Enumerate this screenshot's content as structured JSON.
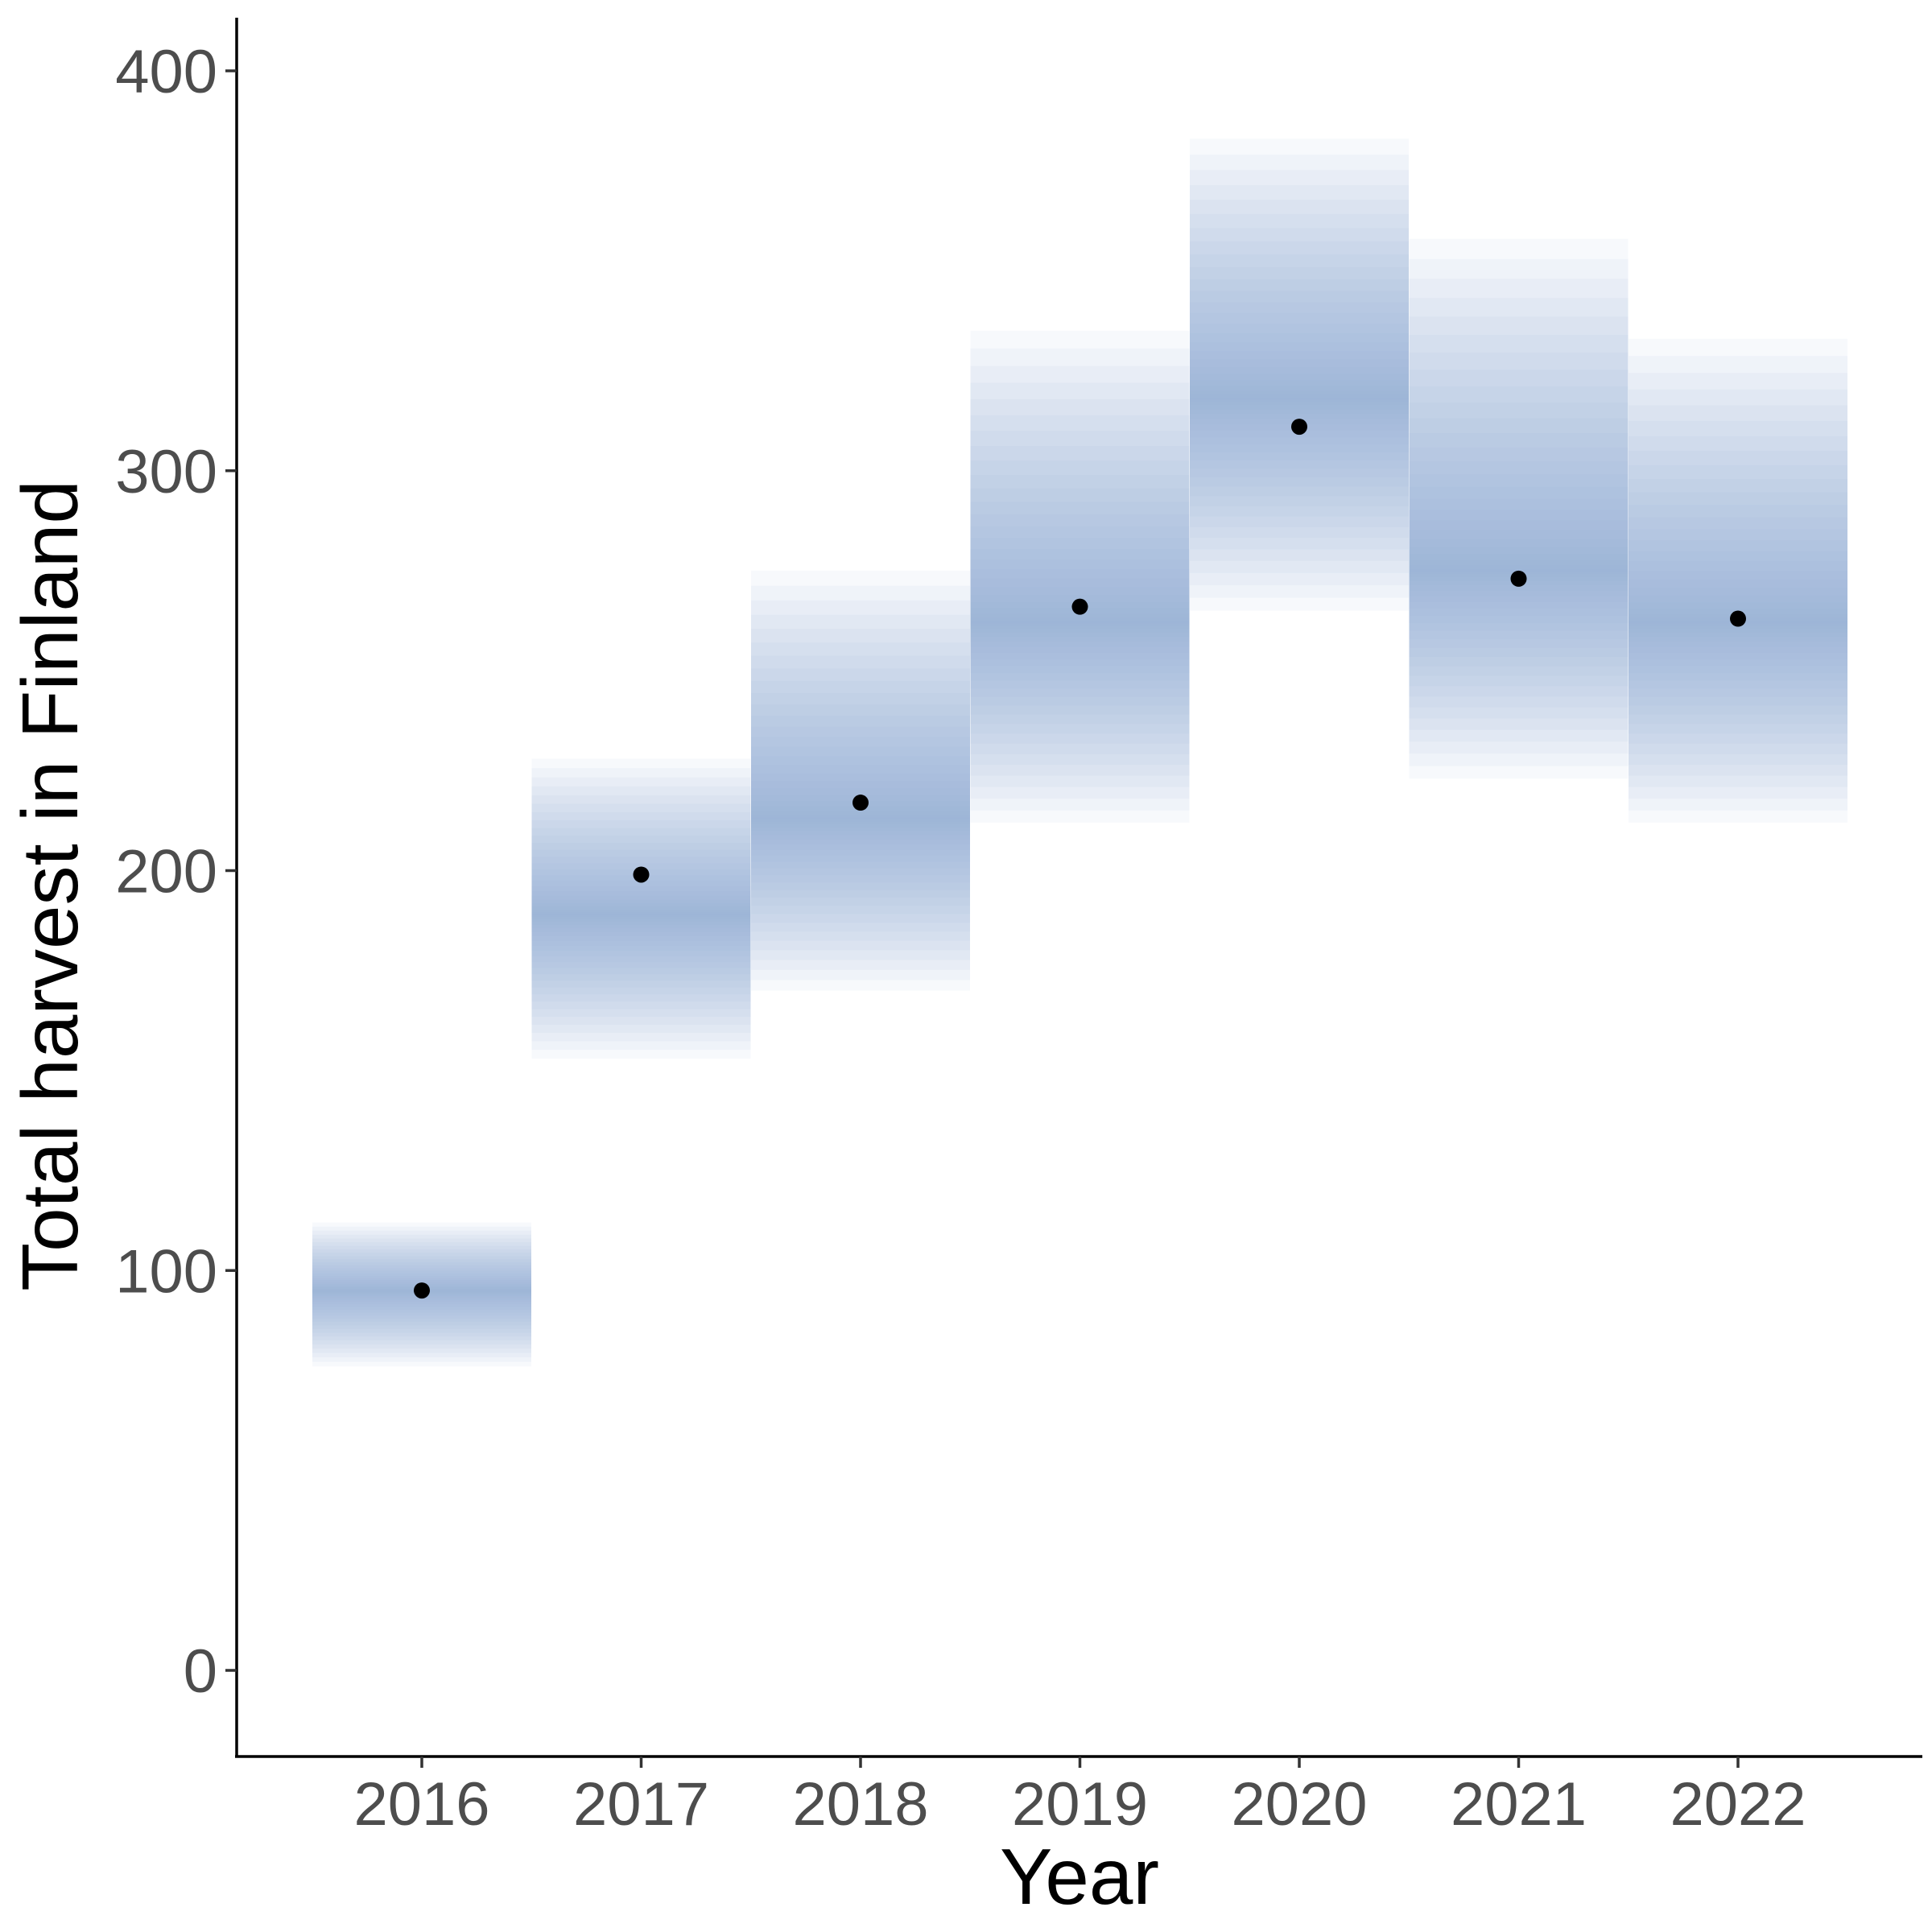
{
  "chart_data": {
    "type": "scatter",
    "title": "",
    "xlabel": "Year",
    "ylabel": "Total harvest in Finland",
    "categories": [
      "2016",
      "2017",
      "2018",
      "2019",
      "2020",
      "2021",
      "2022"
    ],
    "yticks": [
      "0",
      "100",
      "200",
      "300",
      "400"
    ],
    "ylim": [
      -21,
      415
    ],
    "grid": false,
    "series": [
      {
        "kind": "point",
        "values": [
          95,
          199,
          217,
          266,
          311,
          273,
          263
        ]
      },
      {
        "kind": "density-band",
        "fill_color": "#8eafd3",
        "medians": [
          95,
          189,
          213,
          262,
          318,
          275,
          262
        ],
        "lower": [
          76,
          153,
          170,
          212,
          265,
          223,
          212
        ],
        "upper": [
          112,
          228,
          275,
          335,
          383,
          358,
          333
        ]
      }
    ],
    "colors": {
      "band": "#8eafd3",
      "point": "#000000",
      "axis": "#000000",
      "tick_label": "#4d4d4d"
    }
  }
}
